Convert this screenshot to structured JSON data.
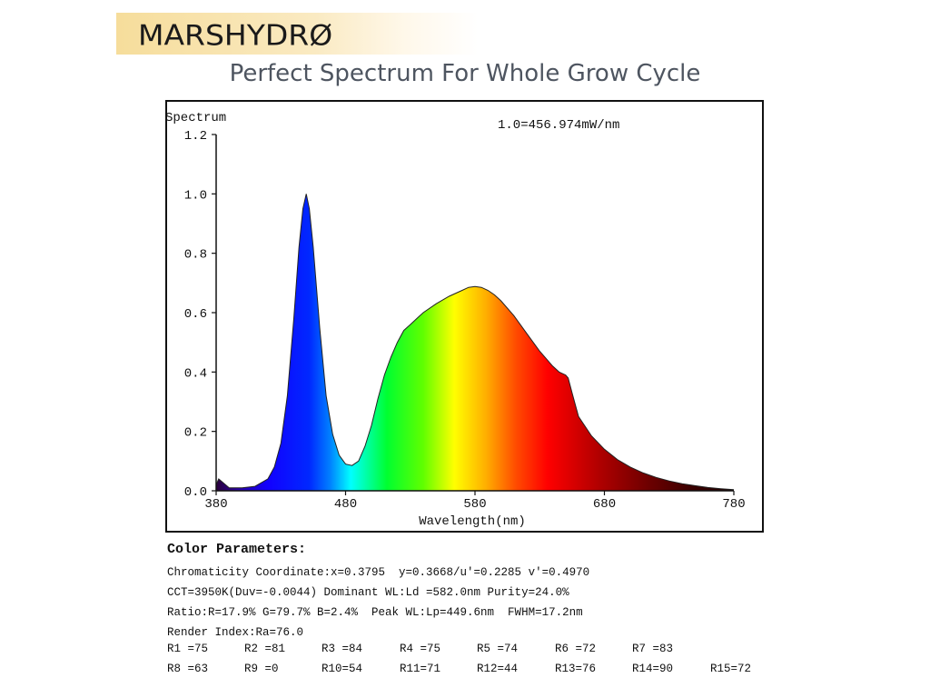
{
  "brand": {
    "logo_text": "MARSHYDRØ"
  },
  "header": {
    "title": "Perfect Spectrum For Whole Grow Cycle"
  },
  "chart_data": {
    "type": "area",
    "title": "",
    "ylabel": "Spectrum",
    "xlabel": "Wavelength(nm)",
    "annotation": "1.0=456.974mW/nm",
    "xlim": [
      380,
      780
    ],
    "ylim": [
      0,
      1.2
    ],
    "x_ticks": [
      380,
      480,
      580,
      680,
      780
    ],
    "x_tick_labels": [
      "380",
      "480",
      "580",
      "680",
      "780"
    ],
    "y_ticks": [
      0.0,
      0.2,
      0.4,
      0.6,
      0.8,
      1.0,
      1.2
    ],
    "y_tick_labels": [
      "0.0",
      "0.2",
      "0.4",
      "0.6",
      "0.8",
      "1.0",
      "1.2"
    ],
    "grid": false,
    "fill": "wavelength-rainbow",
    "series": [
      {
        "x": [
          380,
          382,
          390,
          400,
          410,
          420,
          425,
          430,
          435,
          440,
          444,
          447,
          449.6,
          452,
          455,
          460,
          465,
          470,
          475,
          480,
          485,
          490,
          495,
          500,
          505,
          510,
          515,
          520,
          525,
          530,
          535,
          540,
          550,
          560,
          570,
          575,
          580,
          585,
          590,
          595,
          600,
          610,
          620,
          630,
          640,
          645,
          650,
          652,
          655,
          660,
          670,
          680,
          690,
          700,
          710,
          720,
          730,
          740,
          750,
          760,
          770,
          780
        ],
        "y": [
          0.02,
          0.04,
          0.01,
          0.01,
          0.015,
          0.04,
          0.08,
          0.16,
          0.32,
          0.58,
          0.82,
          0.95,
          1.0,
          0.95,
          0.82,
          0.55,
          0.32,
          0.19,
          0.12,
          0.09,
          0.085,
          0.1,
          0.15,
          0.22,
          0.31,
          0.39,
          0.45,
          0.5,
          0.54,
          0.56,
          0.58,
          0.6,
          0.63,
          0.655,
          0.675,
          0.685,
          0.688,
          0.685,
          0.675,
          0.66,
          0.64,
          0.59,
          0.53,
          0.47,
          0.42,
          0.4,
          0.39,
          0.38,
          0.33,
          0.25,
          0.185,
          0.14,
          0.105,
          0.08,
          0.06,
          0.045,
          0.033,
          0.024,
          0.017,
          0.011,
          0.007,
          0.004
        ]
      }
    ]
  },
  "params": {
    "title": "Color Parameters:",
    "lines": [
      "Chromaticity Coordinate:x=0.3795  y=0.3668/u'=0.2285 v'=0.4970",
      "CCT=3950K(Duv=-0.0044) Dominant WL:Ld =582.0nm Purity=24.0%",
      "Ratio:R=17.9% G=79.7% B=2.4%  Peak WL:Lp=449.6nm  FWHM=17.2nm",
      "Render Index:Ra=76.0"
    ],
    "render_values": [
      [
        "R1 =75",
        "R2 =81",
        "R3 =84",
        "R4 =75",
        "R5 =74",
        "R6 =72",
        "R7 =83"
      ],
      [
        "R8 =63",
        "R9 =0",
        "R10=54",
        "R11=71",
        "R12=44",
        "R13=76",
        "R14=90",
        "R15=72"
      ]
    ]
  }
}
